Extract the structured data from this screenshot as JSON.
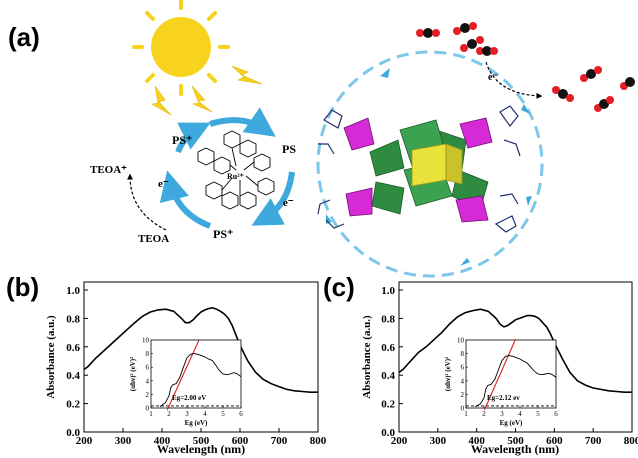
{
  "panels": {
    "a": {
      "label": "(a)",
      "texts": {
        "ps_plus_top": "PS⁺",
        "ps_right": "PS",
        "ps_plus_bottom": "PS⁺",
        "electron_left": "e⁻",
        "electron_right": "e⁻",
        "electron_top": "e⁻",
        "teoa_plus": "TEOA⁺",
        "teoa": "TEOA",
        "ru_center": "Ru²⁺"
      }
    },
    "b": {
      "label": "(b)",
      "eg_annotation": "Eg=2.00 eV"
    },
    "c": {
      "label": "(c)",
      "eg_annotation": "Eg=2.12 ev"
    }
  },
  "axes": {
    "xlabel": "Wavelength  (nm)",
    "ylabel": "Absorbance (a.u.)",
    "inset_xlabel": "Eg (eV)",
    "inset_ylabel": "(αhν)² (eV)²",
    "x_ticks": [
      "200",
      "300",
      "400",
      "500",
      "600",
      "700",
      "800"
    ],
    "y_ticks": [
      "0.0",
      "0.2",
      "0.4",
      "0.6",
      "0.8",
      "1.0"
    ],
    "inset_x_ticks": [
      "1",
      "2",
      "3",
      "4",
      "5",
      "6"
    ],
    "inset_y_ticks": [
      "0",
      "2",
      "4",
      "6",
      "8",
      "10"
    ]
  },
  "colors": {
    "sun": "#f7d31e",
    "arrow_blue": "#3ea9dc",
    "polyhedra_green": "#2e8b3f",
    "polyhedra_yellow": "#e8e23a",
    "polyhedra_magenta": "#d52ad6",
    "fit_line": "#d81e1e"
  },
  "chart_data": [
    {
      "type": "line",
      "panel": "b",
      "xlabel": "Wavelength  (nm)",
      "ylabel": "Absorbance (a.u.)",
      "xlim": [
        200,
        800
      ],
      "ylim": [
        0,
        1.0
      ],
      "x": [
        200,
        210,
        230,
        250,
        270,
        290,
        310,
        330,
        350,
        370,
        390,
        410,
        430,
        450,
        460,
        470,
        480,
        490,
        500,
        510,
        520,
        530,
        540,
        550,
        560,
        570,
        580,
        590,
        600,
        620,
        640,
        660,
        680,
        700,
        720,
        740,
        760,
        780,
        800
      ],
      "values": [
        0.44,
        0.46,
        0.52,
        0.57,
        0.62,
        0.67,
        0.72,
        0.77,
        0.815,
        0.845,
        0.86,
        0.865,
        0.85,
        0.8,
        0.77,
        0.77,
        0.79,
        0.82,
        0.845,
        0.86,
        0.87,
        0.875,
        0.865,
        0.85,
        0.83,
        0.8,
        0.75,
        0.68,
        0.61,
        0.5,
        0.42,
        0.37,
        0.34,
        0.32,
        0.3,
        0.29,
        0.285,
        0.28,
        0.28
      ],
      "inset": {
        "xlabel": "Eg (eV)",
        "xlim": [
          1,
          6
        ],
        "ylim": [
          0,
          10
        ],
        "curve_x": [
          1.5,
          1.8,
          2.0,
          2.1,
          2.2,
          2.4,
          2.6,
          2.8,
          3.0,
          3.2,
          3.4,
          3.6,
          3.8,
          4.0,
          4.2,
          4.4,
          4.6,
          4.8,
          5.0,
          5.2,
          5.4,
          5.6,
          5.8,
          6.0
        ],
        "curve_y": [
          0.2,
          0.8,
          1.8,
          3.0,
          3.4,
          3.6,
          4.5,
          6.0,
          7.4,
          7.9,
          8.0,
          7.9,
          7.7,
          7.5,
          7.2,
          7.0,
          6.3,
          5.5,
          5.0,
          4.9,
          5.0,
          5.2,
          5.0,
          4.6
        ],
        "fit_line": {
          "eg": 2.0,
          "slope": 6.0
        },
        "baseline": 0.3,
        "annotation": "Eg=2.00 eV"
      }
    },
    {
      "type": "line",
      "panel": "c",
      "xlabel": "Wavelength  (nm)",
      "ylabel": "Absorbance (a.u.)",
      "xlim": [
        200,
        800
      ],
      "ylim": [
        0,
        1.0
      ],
      "x": [
        200,
        210,
        230,
        250,
        270,
        290,
        310,
        330,
        350,
        370,
        390,
        410,
        430,
        450,
        460,
        470,
        480,
        490,
        500,
        510,
        520,
        530,
        540,
        550,
        560,
        570,
        580,
        590,
        600,
        620,
        640,
        660,
        680,
        700,
        720,
        740,
        760,
        780,
        800
      ],
      "values": [
        0.42,
        0.44,
        0.5,
        0.56,
        0.6,
        0.65,
        0.7,
        0.76,
        0.81,
        0.84,
        0.855,
        0.865,
        0.85,
        0.8,
        0.76,
        0.74,
        0.75,
        0.77,
        0.79,
        0.8,
        0.81,
        0.82,
        0.82,
        0.815,
        0.8,
        0.77,
        0.74,
        0.69,
        0.63,
        0.52,
        0.42,
        0.36,
        0.33,
        0.31,
        0.3,
        0.29,
        0.285,
        0.28,
        0.28
      ],
      "inset": {
        "xlabel": "Eg (eV)",
        "xlim": [
          1,
          6
        ],
        "ylim": [
          0,
          10
        ],
        "curve_x": [
          1.5,
          1.8,
          2.0,
          2.1,
          2.2,
          2.4,
          2.6,
          2.8,
          3.0,
          3.2,
          3.4,
          3.6,
          3.8,
          4.0,
          4.2,
          4.4,
          4.6,
          4.8,
          5.0,
          5.2,
          5.4,
          5.6,
          5.8,
          6.0
        ],
        "curve_y": [
          0.2,
          0.6,
          1.5,
          2.8,
          3.3,
          3.5,
          4.2,
          5.6,
          7.0,
          7.6,
          7.7,
          7.6,
          7.4,
          7.2,
          6.9,
          6.6,
          6.0,
          5.4,
          5.0,
          4.9,
          5.0,
          5.1,
          4.9,
          4.5
        ],
        "fit_line": {
          "eg": 2.12,
          "slope": 6.2
        },
        "baseline": 0.3,
        "annotation": "Eg=2.12 ev"
      }
    }
  ]
}
